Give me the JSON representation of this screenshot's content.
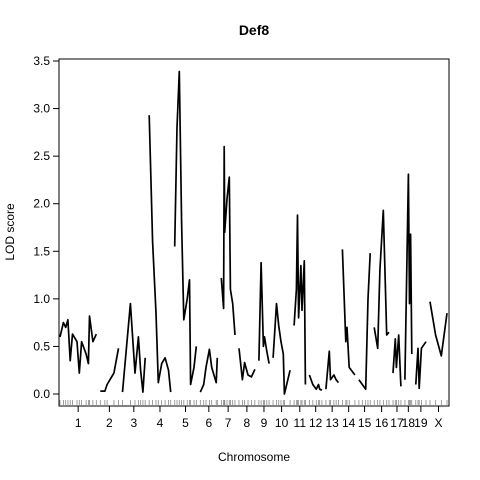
{
  "chart_data": {
    "type": "line",
    "title": "Def8",
    "xlabel": "Chromosome",
    "ylabel": "LOD score",
    "ylim": [
      -0.12,
      3.5
    ],
    "yticks": [
      0.0,
      0.5,
      1.0,
      1.5,
      2.0,
      2.5,
      3.0,
      3.5
    ],
    "yticklabels": [
      "0.0",
      "0.5",
      "1.0",
      "1.5",
      "2.0",
      "2.5",
      "3.0",
      "3.5"
    ],
    "grid": false,
    "legend": "none",
    "line_color": "#000000",
    "chromosomes": [
      {
        "label": "1",
        "points": [
          [
            0,
            0.6
          ],
          [
            6,
            0.75
          ],
          [
            10,
            0.7
          ],
          [
            14,
            0.78
          ],
          [
            18,
            0.35
          ],
          [
            22,
            0.63
          ],
          [
            30,
            0.55
          ],
          [
            34,
            0.22
          ],
          [
            38,
            0.55
          ],
          [
            46,
            0.42
          ],
          [
            50,
            0.32
          ],
          [
            52,
            0.82
          ],
          [
            58,
            0.55
          ],
          [
            64,
            0.63
          ]
        ]
      },
      {
        "label": "2",
        "points": [
          [
            0,
            0.03
          ],
          [
            8,
            0.03
          ],
          [
            12,
            0.1
          ],
          [
            24,
            0.22
          ],
          [
            32,
            0.48
          ]
        ]
      },
      {
        "label": "3",
        "points": [
          [
            0,
            0.02
          ],
          [
            14,
            0.95
          ],
          [
            22,
            0.22
          ],
          [
            28,
            0.6
          ],
          [
            32,
            0.25
          ],
          [
            36,
            0.02
          ],
          [
            40,
            0.38
          ]
        ]
      },
      {
        "label": "4",
        "points": [
          [
            0,
            2.93
          ],
          [
            6,
            1.6
          ],
          [
            12,
            0.85
          ],
          [
            16,
            0.12
          ],
          [
            22,
            0.32
          ],
          [
            28,
            0.38
          ],
          [
            34,
            0.25
          ],
          [
            38,
            0.02
          ]
        ]
      },
      {
        "label": "5",
        "points": [
          [
            0,
            1.55
          ],
          [
            4,
            2.8
          ],
          [
            8,
            3.39
          ],
          [
            12,
            1.8
          ],
          [
            16,
            0.78
          ],
          [
            22,
            1.0
          ],
          [
            26,
            1.2
          ],
          [
            28,
            0.1
          ],
          [
            34,
            0.28
          ],
          [
            38,
            0.5
          ]
        ]
      },
      {
        "label": "6",
        "points": [
          [
            0,
            0.02
          ],
          [
            6,
            0.1
          ],
          [
            10,
            0.28
          ],
          [
            16,
            0.47
          ],
          [
            20,
            0.28
          ],
          [
            28,
            0.12
          ],
          [
            30,
            0.38
          ]
        ]
      },
      {
        "label": "7",
        "points": [
          [
            0,
            1.22
          ],
          [
            4,
            0.9
          ],
          [
            5,
            2.6
          ],
          [
            6,
            1.7
          ],
          [
            10,
            2.05
          ],
          [
            14,
            2.28
          ],
          [
            16,
            1.1
          ],
          [
            20,
            0.95
          ],
          [
            24,
            0.62
          ]
        ]
      },
      {
        "label": "8",
        "points": [
          [
            0,
            0.48
          ],
          [
            6,
            0.15
          ],
          [
            10,
            0.33
          ],
          [
            16,
            0.2
          ],
          [
            22,
            0.18
          ],
          [
            28,
            0.26
          ]
        ]
      },
      {
        "label": "9",
        "points": [
          [
            0,
            0.35
          ],
          [
            4,
            1.38
          ],
          [
            8,
            0.5
          ],
          [
            10,
            0.6
          ],
          [
            14,
            0.45
          ],
          [
            18,
            0.32
          ]
        ]
      },
      {
        "label": "10",
        "points": [
          [
            0,
            0.38
          ],
          [
            6,
            0.95
          ],
          [
            10,
            0.72
          ],
          [
            14,
            0.55
          ],
          [
            18,
            0.42
          ],
          [
            20,
            0.0
          ],
          [
            30,
            0.25
          ]
        ]
      },
      {
        "label": "11",
        "points": [
          [
            0,
            0.72
          ],
          [
            4,
            1.1
          ],
          [
            6,
            1.88
          ],
          [
            8,
            0.8
          ],
          [
            12,
            1.35
          ],
          [
            14,
            0.88
          ],
          [
            18,
            1.4
          ],
          [
            20,
            0.1
          ]
        ]
      },
      {
        "label": "12",
        "points": [
          [
            0,
            0.2
          ],
          [
            6,
            0.1
          ],
          [
            12,
            0.05
          ],
          [
            16,
            0.1
          ],
          [
            18,
            0.05
          ],
          [
            22,
            0.04
          ]
        ]
      },
      {
        "label": "13",
        "points": [
          [
            0,
            0.05
          ],
          [
            6,
            0.45
          ],
          [
            8,
            0.15
          ],
          [
            14,
            0.2
          ],
          [
            18,
            0.15
          ],
          [
            22,
            0.12
          ]
        ]
      },
      {
        "label": "14",
        "points": [
          [
            0,
            1.52
          ],
          [
            6,
            0.55
          ],
          [
            8,
            0.7
          ],
          [
            12,
            0.28
          ],
          [
            22,
            0.2
          ]
        ]
      },
      {
        "label": "15",
        "points": [
          [
            0,
            0.15
          ],
          [
            6,
            0.1
          ],
          [
            12,
            0.05
          ],
          [
            16,
            1.0
          ],
          [
            20,
            1.48
          ]
        ]
      },
      {
        "label": "16",
        "points": [
          [
            0,
            0.7
          ],
          [
            6,
            0.48
          ],
          [
            10,
            1.3
          ],
          [
            16,
            1.93
          ],
          [
            22,
            0.62
          ],
          [
            26,
            0.65
          ]
        ]
      },
      {
        "label": "17",
        "points": [
          [
            0,
            0.22
          ],
          [
            4,
            0.58
          ],
          [
            6,
            0.28
          ],
          [
            10,
            0.62
          ],
          [
            14,
            0.08
          ]
        ]
      },
      {
        "label": "18",
        "points": [
          [
            0,
            0.15
          ],
          [
            6,
            2.31
          ],
          [
            8,
            0.95
          ],
          [
            10,
            1.68
          ],
          [
            12,
            0.42
          ]
        ]
      },
      {
        "label": "19",
        "points": [
          [
            0,
            0.1
          ],
          [
            4,
            0.48
          ],
          [
            6,
            0.06
          ],
          [
            10,
            0.48
          ],
          [
            18,
            0.55
          ]
        ]
      },
      {
        "label": "X",
        "points": [
          [
            0,
            0.97
          ],
          [
            10,
            0.62
          ],
          [
            20,
            0.4
          ],
          [
            30,
            0.85
          ]
        ]
      }
    ]
  }
}
